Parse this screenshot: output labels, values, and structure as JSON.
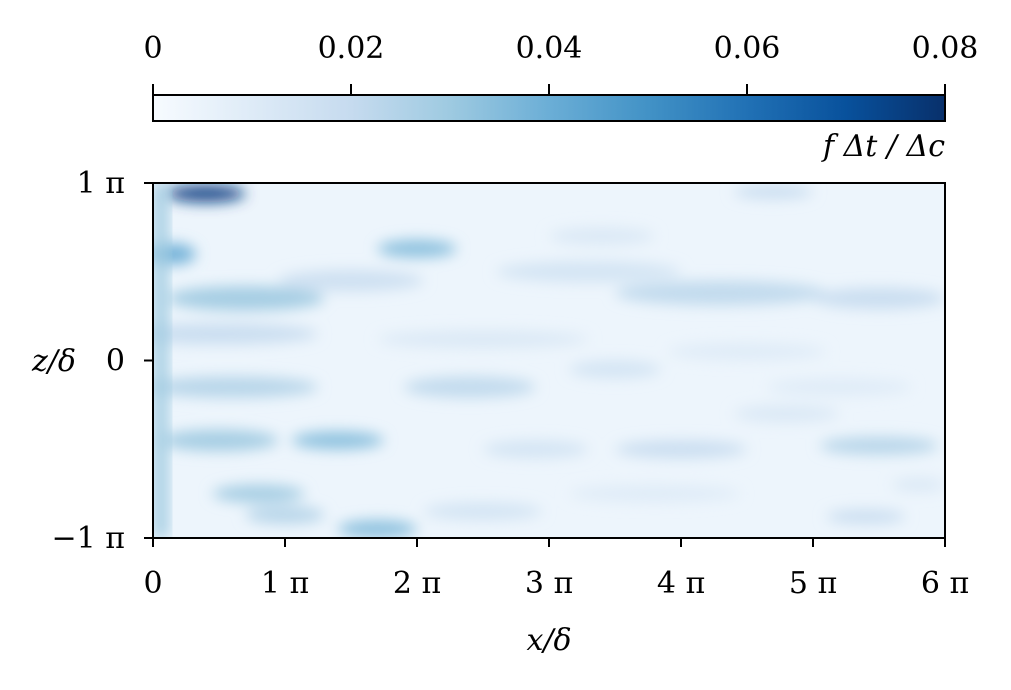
{
  "chart_data": {
    "type": "heatmap",
    "title": "",
    "xlabel": "x/δ",
    "ylabel": "z/δ",
    "xlim": [
      0,
      6
    ],
    "ylim": [
      -1,
      1
    ],
    "x_unit": "π",
    "y_unit": "π",
    "x_ticks": [
      0,
      1,
      2,
      3,
      4,
      5,
      6
    ],
    "x_tick_labels": [
      "0",
      "1 π",
      "2 π",
      "3 π",
      "4 π",
      "5 π",
      "6 π"
    ],
    "y_ticks": [
      -1,
      0,
      1
    ],
    "y_tick_labels": [
      "−1 π",
      "0",
      "1 π"
    ],
    "colorbar": {
      "label": "f Δt / Δc",
      "range": [
        0,
        0.08
      ],
      "ticks": [
        0,
        0.02,
        0.04,
        0.06,
        0.08
      ],
      "tick_labels": [
        "0",
        "0.02",
        "0.04",
        "0.06",
        "0.08"
      ],
      "colormap": "Blues",
      "position": "top"
    },
    "background_value": 0.004,
    "inlet_band": {
      "x_range": [
        0,
        0.12
      ],
      "value": 0.03
    },
    "streaks": [
      {
        "x": 0.4,
        "z": 0.94,
        "len": 0.6,
        "width": 0.05,
        "value": 0.075
      },
      {
        "x": 0.15,
        "z": 0.6,
        "len": 0.35,
        "width": 0.06,
        "value": 0.04
      },
      {
        "x": 0.7,
        "z": 0.35,
        "len": 1.2,
        "width": 0.07,
        "value": 0.03
      },
      {
        "x": 1.5,
        "z": 0.45,
        "len": 1.1,
        "width": 0.06,
        "value": 0.018
      },
      {
        "x": 2.0,
        "z": 0.63,
        "len": 0.6,
        "width": 0.05,
        "value": 0.035
      },
      {
        "x": 3.3,
        "z": 0.5,
        "len": 1.4,
        "width": 0.06,
        "value": 0.015
      },
      {
        "x": 4.3,
        "z": 0.38,
        "len": 1.6,
        "width": 0.07,
        "value": 0.022
      },
      {
        "x": 5.5,
        "z": 0.35,
        "len": 1.0,
        "width": 0.06,
        "value": 0.02
      },
      {
        "x": 4.7,
        "z": 0.95,
        "len": 0.6,
        "width": 0.04,
        "value": 0.02
      },
      {
        "x": 3.4,
        "z": 0.7,
        "len": 0.8,
        "width": 0.05,
        "value": 0.012
      },
      {
        "x": 0.5,
        "z": 0.15,
        "len": 1.5,
        "width": 0.06,
        "value": 0.02
      },
      {
        "x": 2.5,
        "z": 0.12,
        "len": 1.6,
        "width": 0.05,
        "value": 0.012
      },
      {
        "x": 4.5,
        "z": 0.05,
        "len": 1.2,
        "width": 0.05,
        "value": 0.01
      },
      {
        "x": 0.6,
        "z": -0.15,
        "len": 1.3,
        "width": 0.06,
        "value": 0.025
      },
      {
        "x": 2.4,
        "z": -0.15,
        "len": 1.0,
        "width": 0.06,
        "value": 0.022
      },
      {
        "x": 3.5,
        "z": -0.05,
        "len": 0.7,
        "width": 0.05,
        "value": 0.015
      },
      {
        "x": 5.2,
        "z": -0.15,
        "len": 1.1,
        "width": 0.05,
        "value": 0.01
      },
      {
        "x": 0.5,
        "z": -0.45,
        "len": 0.9,
        "width": 0.06,
        "value": 0.03
      },
      {
        "x": 1.4,
        "z": -0.45,
        "len": 0.7,
        "width": 0.05,
        "value": 0.035
      },
      {
        "x": 2.9,
        "z": -0.5,
        "len": 0.8,
        "width": 0.05,
        "value": 0.015
      },
      {
        "x": 4.0,
        "z": -0.5,
        "len": 1.0,
        "width": 0.05,
        "value": 0.02
      },
      {
        "x": 5.5,
        "z": -0.48,
        "len": 0.9,
        "width": 0.05,
        "value": 0.025
      },
      {
        "x": 4.8,
        "z": -0.3,
        "len": 0.8,
        "width": 0.05,
        "value": 0.012
      },
      {
        "x": 0.8,
        "z": -0.75,
        "len": 0.7,
        "width": 0.05,
        "value": 0.03
      },
      {
        "x": 1.0,
        "z": -0.87,
        "len": 0.6,
        "width": 0.05,
        "value": 0.025
      },
      {
        "x": 1.7,
        "z": -0.95,
        "len": 0.6,
        "width": 0.05,
        "value": 0.035
      },
      {
        "x": 2.5,
        "z": -0.85,
        "len": 0.9,
        "width": 0.05,
        "value": 0.015
      },
      {
        "x": 3.8,
        "z": -0.75,
        "len": 1.3,
        "width": 0.05,
        "value": 0.01
      },
      {
        "x": 5.4,
        "z": -0.88,
        "len": 0.6,
        "width": 0.04,
        "value": 0.02
      },
      {
        "x": 5.8,
        "z": -0.7,
        "len": 0.4,
        "width": 0.04,
        "value": 0.012
      }
    ]
  }
}
